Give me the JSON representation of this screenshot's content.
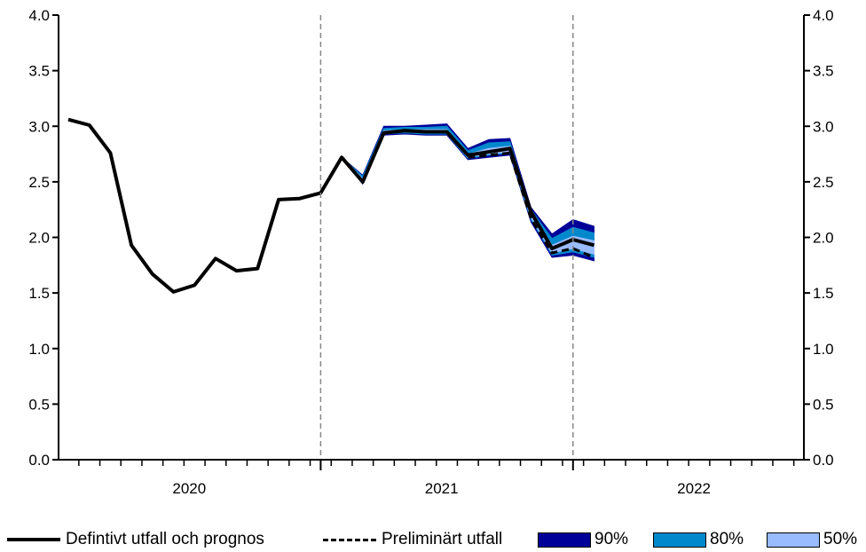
{
  "chart_data": {
    "type": "line",
    "ylim": [
      0,
      4.0
    ],
    "yticks": [
      "0.0",
      "0.5",
      "1.0",
      "1.5",
      "2.0",
      "2.5",
      "3.0",
      "3.5",
      "4.0"
    ],
    "years": [
      "2020",
      "2021",
      "2022"
    ],
    "x_unit": "month index from Jan 2020",
    "series": [
      {
        "name": "Defintivt utfall och prognos",
        "style": "solid",
        "color": "#000000",
        "x": [
          0,
          1,
          2,
          3,
          4,
          5,
          6,
          7,
          8,
          9,
          10,
          11,
          12,
          13,
          14,
          15,
          16,
          17,
          18,
          19,
          20,
          21,
          22,
          23,
          24,
          25
        ],
        "y": [
          3.06,
          3.01,
          2.76,
          1.93,
          1.67,
          1.51,
          1.57,
          1.81,
          1.7,
          1.72,
          2.34,
          2.35,
          2.4,
          2.72,
          2.5,
          2.94,
          2.96,
          2.95,
          2.95,
          2.74,
          2.77,
          2.8,
          2.23,
          1.9,
          1.98,
          1.93
        ]
      },
      {
        "name": "Preliminärt utfall",
        "style": "dashed",
        "color": "#000000",
        "x": [
          19,
          20,
          21,
          22,
          23,
          24,
          25
        ],
        "y": [
          2.72,
          2.74,
          2.76,
          2.17,
          1.86,
          1.9,
          1.82
        ]
      }
    ],
    "bands": [
      {
        "name": "90%",
        "color": "#000099",
        "x": [
          13,
          14,
          15,
          16,
          17,
          18,
          19,
          20,
          21,
          22,
          23,
          24,
          25
        ],
        "lower": [
          2.72,
          2.48,
          2.92,
          2.93,
          2.92,
          2.92,
          2.7,
          2.72,
          2.74,
          2.14,
          1.82,
          1.84,
          1.79
        ],
        "upper": [
          2.72,
          2.56,
          3.0,
          3.0,
          3.01,
          3.02,
          2.8,
          2.88,
          2.89,
          2.27,
          2.03,
          2.16,
          2.1
        ]
      },
      {
        "name": "80%",
        "color": "#0088cc",
        "x": [
          13,
          14,
          15,
          16,
          17,
          18,
          19,
          20,
          21,
          22,
          23,
          24,
          25
        ],
        "lower": [
          2.72,
          2.49,
          2.93,
          2.94,
          2.93,
          2.93,
          2.71,
          2.74,
          2.76,
          2.16,
          1.84,
          1.87,
          1.82
        ],
        "upper": [
          2.72,
          2.55,
          2.98,
          2.99,
          2.99,
          3.0,
          2.78,
          2.85,
          2.86,
          2.25,
          1.99,
          2.09,
          2.04
        ]
      },
      {
        "name": "50%",
        "color": "#99bbff",
        "x": [
          13,
          14,
          15,
          16,
          17,
          18,
          19,
          20,
          21,
          22,
          23,
          24,
          25
        ],
        "lower": [
          2.72,
          2.5,
          2.94,
          2.95,
          2.94,
          2.94,
          2.72,
          2.75,
          2.77,
          2.18,
          1.86,
          1.9,
          1.85
        ],
        "upper": [
          2.72,
          2.53,
          2.96,
          2.97,
          2.97,
          2.97,
          2.75,
          2.8,
          2.82,
          2.22,
          1.93,
          2.01,
          1.97
        ]
      }
    ],
    "legend": {
      "solid_label": "Defintivt utfall och prognos",
      "dashed_label": "Preliminärt utfall",
      "band_labels": [
        "90%",
        "80%",
        "50%"
      ]
    }
  }
}
